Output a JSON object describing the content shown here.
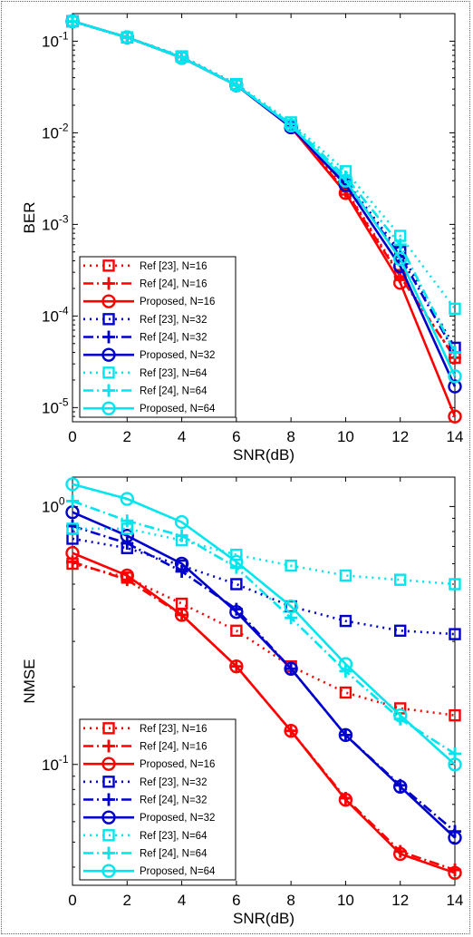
{
  "chart_data": [
    {
      "type": "line",
      "title": "",
      "xlabel": "SNR(dB)",
      "ylabel": "BER",
      "yscale": "log",
      "xlim": [
        0,
        14
      ],
      "ylim": [
        7e-06,
        0.2
      ],
      "x_ticks": [
        0,
        2,
        4,
        6,
        8,
        10,
        12,
        14
      ],
      "y_ticks": [
        {
          "value": 0.1,
          "base": "10",
          "exp": "-1"
        },
        {
          "value": 0.01,
          "base": "10",
          "exp": "-2"
        },
        {
          "value": 0.001,
          "base": "10",
          "exp": "-3"
        },
        {
          "value": 0.0001,
          "base": "10",
          "exp": "-4"
        },
        {
          "value": 1e-05,
          "base": "10",
          "exp": "-5"
        }
      ],
      "grid": false,
      "legend_position": "bottom-left",
      "x": [
        0,
        2,
        4,
        6,
        8,
        10,
        12,
        14
      ],
      "series": [
        {
          "name": "Ref [23], N=16",
          "color": "#ff0000",
          "dash": "dotted",
          "marker": "square",
          "values": [
            0.165,
            0.11,
            0.068,
            0.034,
            0.012,
            0.0024,
            0.00028,
            3.5e-05
          ]
        },
        {
          "name": "Ref [24], N=16",
          "color": "#ff0000",
          "dash": "dashdot",
          "marker": "plus",
          "values": [
            0.165,
            0.11,
            0.067,
            0.033,
            0.0115,
            0.0023,
            0.00027,
            3.5e-05
          ]
        },
        {
          "name": "Proposed, N=16",
          "color": "#ff0000",
          "dash": "solid",
          "marker": "circle",
          "values": [
            0.165,
            0.11,
            0.066,
            0.033,
            0.0115,
            0.0022,
            0.00023,
            8e-06
          ]
        },
        {
          "name": "Ref [23], N=32",
          "color": "#0000cc",
          "dash": "dotted",
          "marker": "square",
          "values": [
            0.165,
            0.11,
            0.068,
            0.034,
            0.012,
            0.003,
            0.0005,
            4.5e-05
          ]
        },
        {
          "name": "Ref [24], N=32",
          "color": "#0000cc",
          "dash": "dashdot",
          "marker": "plus",
          "values": [
            0.165,
            0.11,
            0.067,
            0.033,
            0.0118,
            0.0029,
            0.00045,
            4e-05
          ]
        },
        {
          "name": "Proposed, N=32",
          "color": "#0000cc",
          "dash": "solid",
          "marker": "circle",
          "values": [
            0.165,
            0.11,
            0.066,
            0.033,
            0.0115,
            0.0027,
            0.00035,
            1.7e-05
          ]
        },
        {
          "name": "Ref [23], N=64",
          "color": "#00e5ee",
          "dash": "dotted",
          "marker": "square",
          "values": [
            0.165,
            0.11,
            0.068,
            0.034,
            0.013,
            0.0038,
            0.00075,
            0.00012
          ]
        },
        {
          "name": "Ref [24], N=64",
          "color": "#00e5ee",
          "dash": "dashdot",
          "marker": "plus",
          "values": [
            0.165,
            0.11,
            0.067,
            0.033,
            0.0125,
            0.0033,
            0.0006,
            4e-05
          ]
        },
        {
          "name": "Proposed, N=64",
          "color": "#00e5ee",
          "dash": "solid",
          "marker": "circle",
          "values": [
            0.165,
            0.11,
            0.066,
            0.033,
            0.012,
            0.003,
            0.00042,
            2.2e-05
          ]
        }
      ]
    },
    {
      "type": "line",
      "title": "",
      "xlabel": "SNR(dB)",
      "ylabel": "NMSE",
      "yscale": "log",
      "xlim": [
        0,
        14
      ],
      "ylim": [
        0.034,
        1.3
      ],
      "x_ticks": [
        0,
        2,
        4,
        6,
        8,
        10,
        12,
        14
      ],
      "y_ticks": [
        {
          "value": 1,
          "base": "10",
          "exp": "0"
        },
        {
          "value": 0.1,
          "base": "10",
          "exp": "-1"
        }
      ],
      "grid": false,
      "legend_position": "bottom-left",
      "x": [
        0,
        2,
        4,
        6,
        8,
        10,
        12,
        14
      ],
      "series": [
        {
          "name": "Ref [23], N=16",
          "color": "#ff0000",
          "dash": "dotted",
          "marker": "square",
          "values": [
            0.6,
            0.53,
            0.42,
            0.33,
            0.24,
            0.19,
            0.165,
            0.155
          ]
        },
        {
          "name": "Ref [24], N=16",
          "color": "#ff0000",
          "dash": "dashdot",
          "marker": "plus",
          "values": [
            0.61,
            0.52,
            0.38,
            0.24,
            0.135,
            0.074,
            0.046,
            0.039
          ]
        },
        {
          "name": "Proposed, N=16",
          "color": "#ff0000",
          "dash": "solid",
          "marker": "circle",
          "values": [
            0.66,
            0.54,
            0.38,
            0.24,
            0.135,
            0.073,
            0.045,
            0.038
          ]
        },
        {
          "name": "Ref [23], N=32",
          "color": "#0000cc",
          "dash": "dotted",
          "marker": "square",
          "values": [
            0.75,
            0.69,
            0.59,
            0.5,
            0.41,
            0.36,
            0.33,
            0.32
          ]
        },
        {
          "name": "Ref [24], N=32",
          "color": "#0000cc",
          "dash": "dashdot",
          "marker": "plus",
          "values": [
            0.84,
            0.72,
            0.56,
            0.4,
            0.235,
            0.13,
            0.083,
            0.055
          ]
        },
        {
          "name": "Proposed, N=32",
          "color": "#0000cc",
          "dash": "solid",
          "marker": "circle",
          "values": [
            0.95,
            0.77,
            0.6,
            0.39,
            0.235,
            0.13,
            0.082,
            0.052
          ]
        },
        {
          "name": "Ref [23], N=64",
          "color": "#00e5ee",
          "dash": "dotted",
          "marker": "square",
          "values": [
            0.82,
            0.82,
            0.74,
            0.65,
            0.59,
            0.54,
            0.52,
            0.5
          ]
        },
        {
          "name": "Ref [24], N=64",
          "color": "#00e5ee",
          "dash": "dashdot",
          "marker": "plus",
          "values": [
            1.05,
            0.88,
            0.77,
            0.58,
            0.37,
            0.23,
            0.15,
            0.11
          ]
        },
        {
          "name": "Proposed, N=64",
          "color": "#00e5ee",
          "dash": "solid",
          "marker": "circle",
          "values": [
            1.22,
            1.07,
            0.87,
            0.61,
            0.41,
            0.245,
            0.155,
            0.1
          ]
        }
      ]
    }
  ]
}
